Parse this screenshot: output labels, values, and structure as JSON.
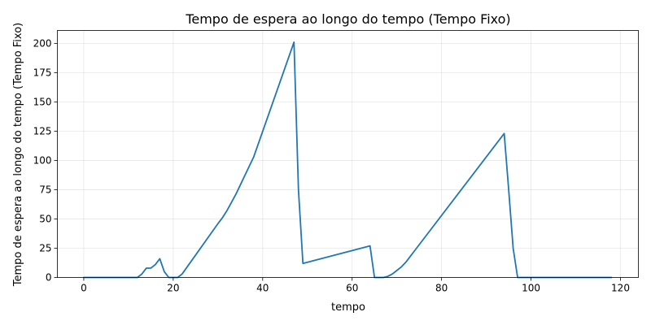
{
  "chart_data": {
    "type": "line",
    "title": "Tempo de espera ao longo do tempo (Tempo Fixo)",
    "xlabel": "tempo",
    "ylabel": "Tempo de espera ao longo do tempo (Tempo Fixo)",
    "xlim": [
      -5.9,
      124
    ],
    "ylim": [
      0,
      211
    ],
    "x_ticks": [
      0,
      20,
      40,
      60,
      80,
      100,
      120
    ],
    "y_ticks": [
      0,
      25,
      50,
      75,
      100,
      125,
      150,
      175,
      200
    ],
    "grid": true,
    "series": [
      {
        "color": "#1f77b4",
        "x": [
          0,
          12,
          13,
          14,
          15,
          16,
          17,
          18,
          19,
          20,
          21,
          22,
          30,
          31,
          32,
          33,
          34,
          35,
          36,
          37,
          38,
          47,
          48,
          49,
          64,
          65,
          67,
          68,
          69,
          70,
          71,
          72,
          94,
          95,
          96,
          97,
          98,
          118
        ],
        "values": [
          0,
          0,
          3,
          8,
          8,
          11,
          16,
          5,
          0,
          0,
          0,
          3,
          46,
          51,
          57,
          64,
          71,
          79,
          87,
          95,
          103,
          201,
          75,
          12,
          27,
          0,
          0,
          1,
          3,
          6,
          9,
          13,
          123,
          75,
          25,
          0,
          0,
          0
        ]
      }
    ]
  }
}
